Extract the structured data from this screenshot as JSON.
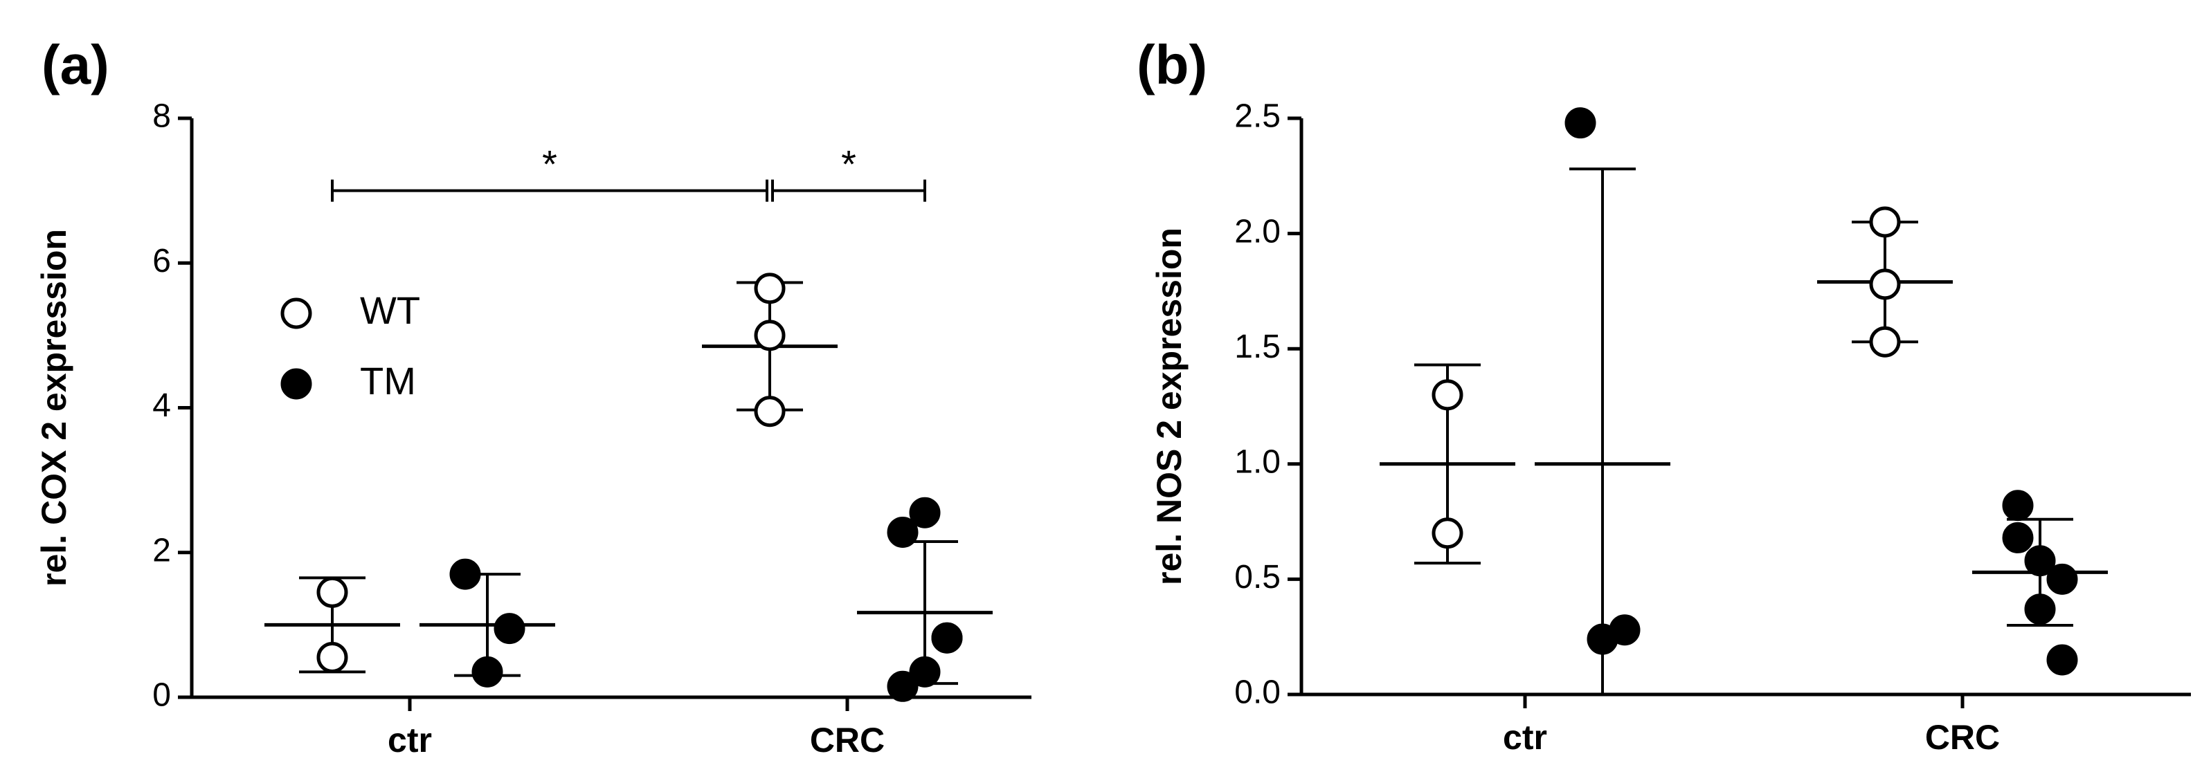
{
  "chart_data": [
    {
      "type": "dot",
      "label": "(a)",
      "y_label": "rel. COX 2 expression",
      "categories": [
        "ctr",
        "CRC"
      ],
      "ylim": [
        0,
        8
      ],
      "yticks": [
        0,
        2,
        4,
        6,
        8
      ],
      "legend": true,
      "series": [
        {
          "name": "WT",
          "marker": "open",
          "color": "#000000",
          "groups": [
            {
              "points": [
                1.45,
                0.55
              ],
              "mean": 1.0,
              "sd": 0.65
            },
            {
              "points": [
                5.65,
                5.0,
                3.95
              ],
              "mean": 4.85,
              "sd": 0.88
            }
          ]
        },
        {
          "name": "TM",
          "marker": "filled",
          "color": "#000000",
          "groups": [
            {
              "points": [
                1.7,
                0.35,
                0.95
              ],
              "mean": 1.0,
              "sd": 0.7
            },
            {
              "points": [
                2.28,
                2.55,
                0.82,
                0.15,
                0.35,
                0.82
              ],
              "mean": 1.17,
              "sd": 0.98
            }
          ]
        }
      ],
      "annotations": [
        {
          "text": "*",
          "y": 7.0
        },
        {
          "text": "*",
          "y": 7.0
        }
      ]
    },
    {
      "type": "dot",
      "label": "(b)",
      "y_label": "rel. NOS 2 expression",
      "categories": [
        "ctr",
        "CRC"
      ],
      "ylim": [
        0,
        2.5
      ],
      "yticks": [
        {
          "value": 0,
          "label": "0.0"
        },
        {
          "value": 0.5,
          "label": "0.5"
        },
        {
          "value": 1,
          "label": "1.0"
        },
        {
          "value": 1.5,
          "label": "1.5"
        },
        {
          "value": 2,
          "label": "2.0"
        },
        {
          "value": 2.5,
          "label": "2.5"
        }
      ],
      "legend": false,
      "series": [
        {
          "marker": "open",
          "color": "#000000",
          "groups": [
            {
              "points": [
                1.3,
                0.7
              ],
              "mean": 1.0,
              "sd": 0.43
            },
            {
              "points": [
                2.05,
                1.78,
                1.53
              ],
              "mean": 1.79,
              "sd": 0.26
            }
          ]
        },
        {
          "marker": "filled",
          "color": "#000000",
          "groups": [
            {
              "points": [
                2.48,
                0.24,
                0.28
              ],
              "mean": 1.0,
              "sd": 1.28
            },
            {
              "points": [
                0.82,
                0.58,
                0.5,
                0.68,
                0.37,
                0.15
              ],
              "mean": 0.53,
              "sd": 0.23
            }
          ]
        }
      ]
    }
  ]
}
